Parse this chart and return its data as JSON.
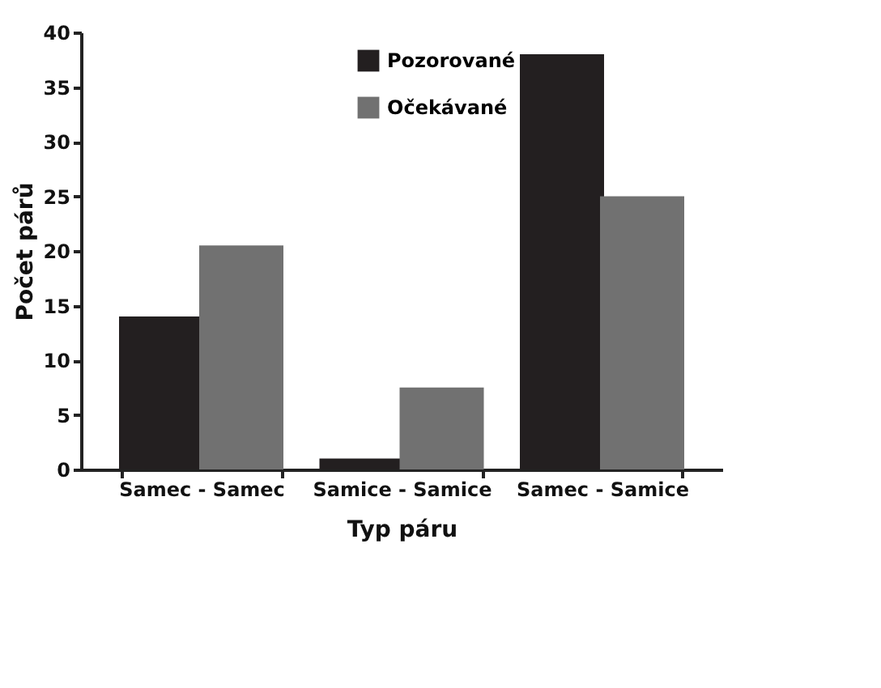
{
  "chart_data": {
    "type": "bar",
    "xlabel": "Typ páru",
    "ylabel": "Počet párů",
    "categories": [
      "Samec - Samec",
      "Samice - Samice",
      "Samec - Samice"
    ],
    "series": [
      {
        "name": "Pozorované",
        "color": "#231f20",
        "values": [
          14,
          1,
          38
        ]
      },
      {
        "name": "Očekávané",
        "color": "#717171",
        "values": [
          20.5,
          7.5,
          25
        ]
      }
    ],
    "ylim": [
      0,
      40
    ],
    "yticks": [
      0,
      5,
      10,
      15,
      20,
      25,
      30,
      35,
      40
    ],
    "grid": false,
    "legend": "top"
  }
}
